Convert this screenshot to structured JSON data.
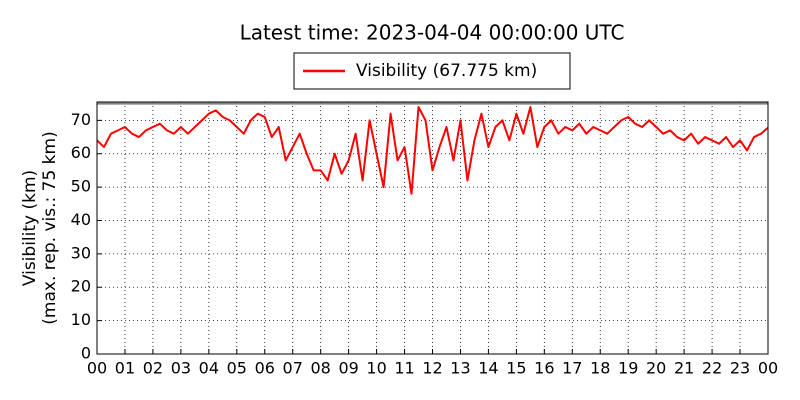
{
  "chart_data": {
    "type": "line",
    "title": "Latest time: 2023-04-04 00:00:00 UTC",
    "y_label": [
      "Visibility (km)",
      "(max. rep. vis.: 75 km)"
    ],
    "x": [
      0,
      0.25,
      0.5,
      0.75,
      1,
      1.25,
      1.5,
      1.75,
      2,
      2.25,
      2.5,
      2.75,
      3,
      3.25,
      3.5,
      3.75,
      4,
      4.25,
      4.5,
      4.75,
      5,
      5.25,
      5.5,
      5.75,
      6,
      6.25,
      6.5,
      6.75,
      7,
      7.25,
      7.5,
      7.75,
      8,
      8.25,
      8.5,
      8.75,
      9,
      9.25,
      9.5,
      9.75,
      10,
      10.25,
      10.5,
      10.75,
      11,
      11.25,
      11.5,
      11.75,
      12,
      12.25,
      12.5,
      12.75,
      13,
      13.25,
      13.5,
      13.75,
      14,
      14.25,
      14.5,
      14.75,
      15,
      15.25,
      15.5,
      15.75,
      16,
      16.25,
      16.5,
      16.75,
      17,
      17.25,
      17.5,
      17.75,
      18,
      18.25,
      18.5,
      18.75,
      19,
      19.25,
      19.5,
      19.75,
      20,
      20.25,
      20.5,
      20.75,
      21,
      21.25,
      21.5,
      21.75,
      22,
      22.25,
      22.5,
      22.75,
      23,
      23.25,
      23.5,
      23.75,
      24
    ],
    "series": [
      {
        "name": "Visibility (67.775 km)",
        "color": "#ff0000",
        "values": [
          64,
          62,
          66,
          67,
          68,
          66,
          65,
          67,
          68,
          69,
          67,
          66,
          68,
          66,
          68,
          70,
          72,
          73,
          71,
          70,
          68,
          66,
          70,
          72,
          71,
          65,
          68,
          58,
          62,
          66,
          60,
          55,
          55,
          52,
          60,
          54,
          58,
          66,
          52,
          70,
          60,
          50,
          72,
          58,
          62,
          48,
          74,
          70,
          55,
          62,
          68,
          58,
          70,
          52,
          64,
          72,
          62,
          68,
          70,
          64,
          72,
          66,
          74,
          62,
          68,
          70,
          66,
          68,
          67,
          69,
          66,
          68,
          67,
          66,
          68,
          70,
          71,
          69,
          68,
          70,
          68,
          66,
          67,
          65,
          64,
          66,
          63,
          65,
          64,
          63,
          65,
          62,
          64,
          61,
          65,
          66,
          67.775
        ]
      }
    ],
    "reference_line": 75,
    "xlim": [
      0,
      24
    ],
    "xticks": [
      {
        "value": 0,
        "label": "00"
      },
      {
        "value": 1,
        "label": "01"
      },
      {
        "value": 2,
        "label": "02"
      },
      {
        "value": 3,
        "label": "03"
      },
      {
        "value": 4,
        "label": "04"
      },
      {
        "value": 5,
        "label": "05"
      },
      {
        "value": 6,
        "label": "06"
      },
      {
        "value": 7,
        "label": "07"
      },
      {
        "value": 8,
        "label": "08"
      },
      {
        "value": 9,
        "label": "09"
      },
      {
        "value": 10,
        "label": "10"
      },
      {
        "value": 11,
        "label": "11"
      },
      {
        "value": 12,
        "label": "12"
      },
      {
        "value": 13,
        "label": "13"
      },
      {
        "value": 14,
        "label": "14"
      },
      {
        "value": 15,
        "label": "15"
      },
      {
        "value": 16,
        "label": "16"
      },
      {
        "value": 17,
        "label": "17"
      },
      {
        "value": 18,
        "label": "18"
      },
      {
        "value": 19,
        "label": "19"
      },
      {
        "value": 20,
        "label": "20"
      },
      {
        "value": 21,
        "label": "21"
      },
      {
        "value": 22,
        "label": "22"
      },
      {
        "value": 23,
        "label": "23"
      },
      {
        "value": 24,
        "label": "00"
      }
    ],
    "ylim": [
      0,
      75.5
    ],
    "yticks": [
      0,
      10,
      20,
      30,
      40,
      50,
      60,
      70
    ],
    "grid": true
  }
}
